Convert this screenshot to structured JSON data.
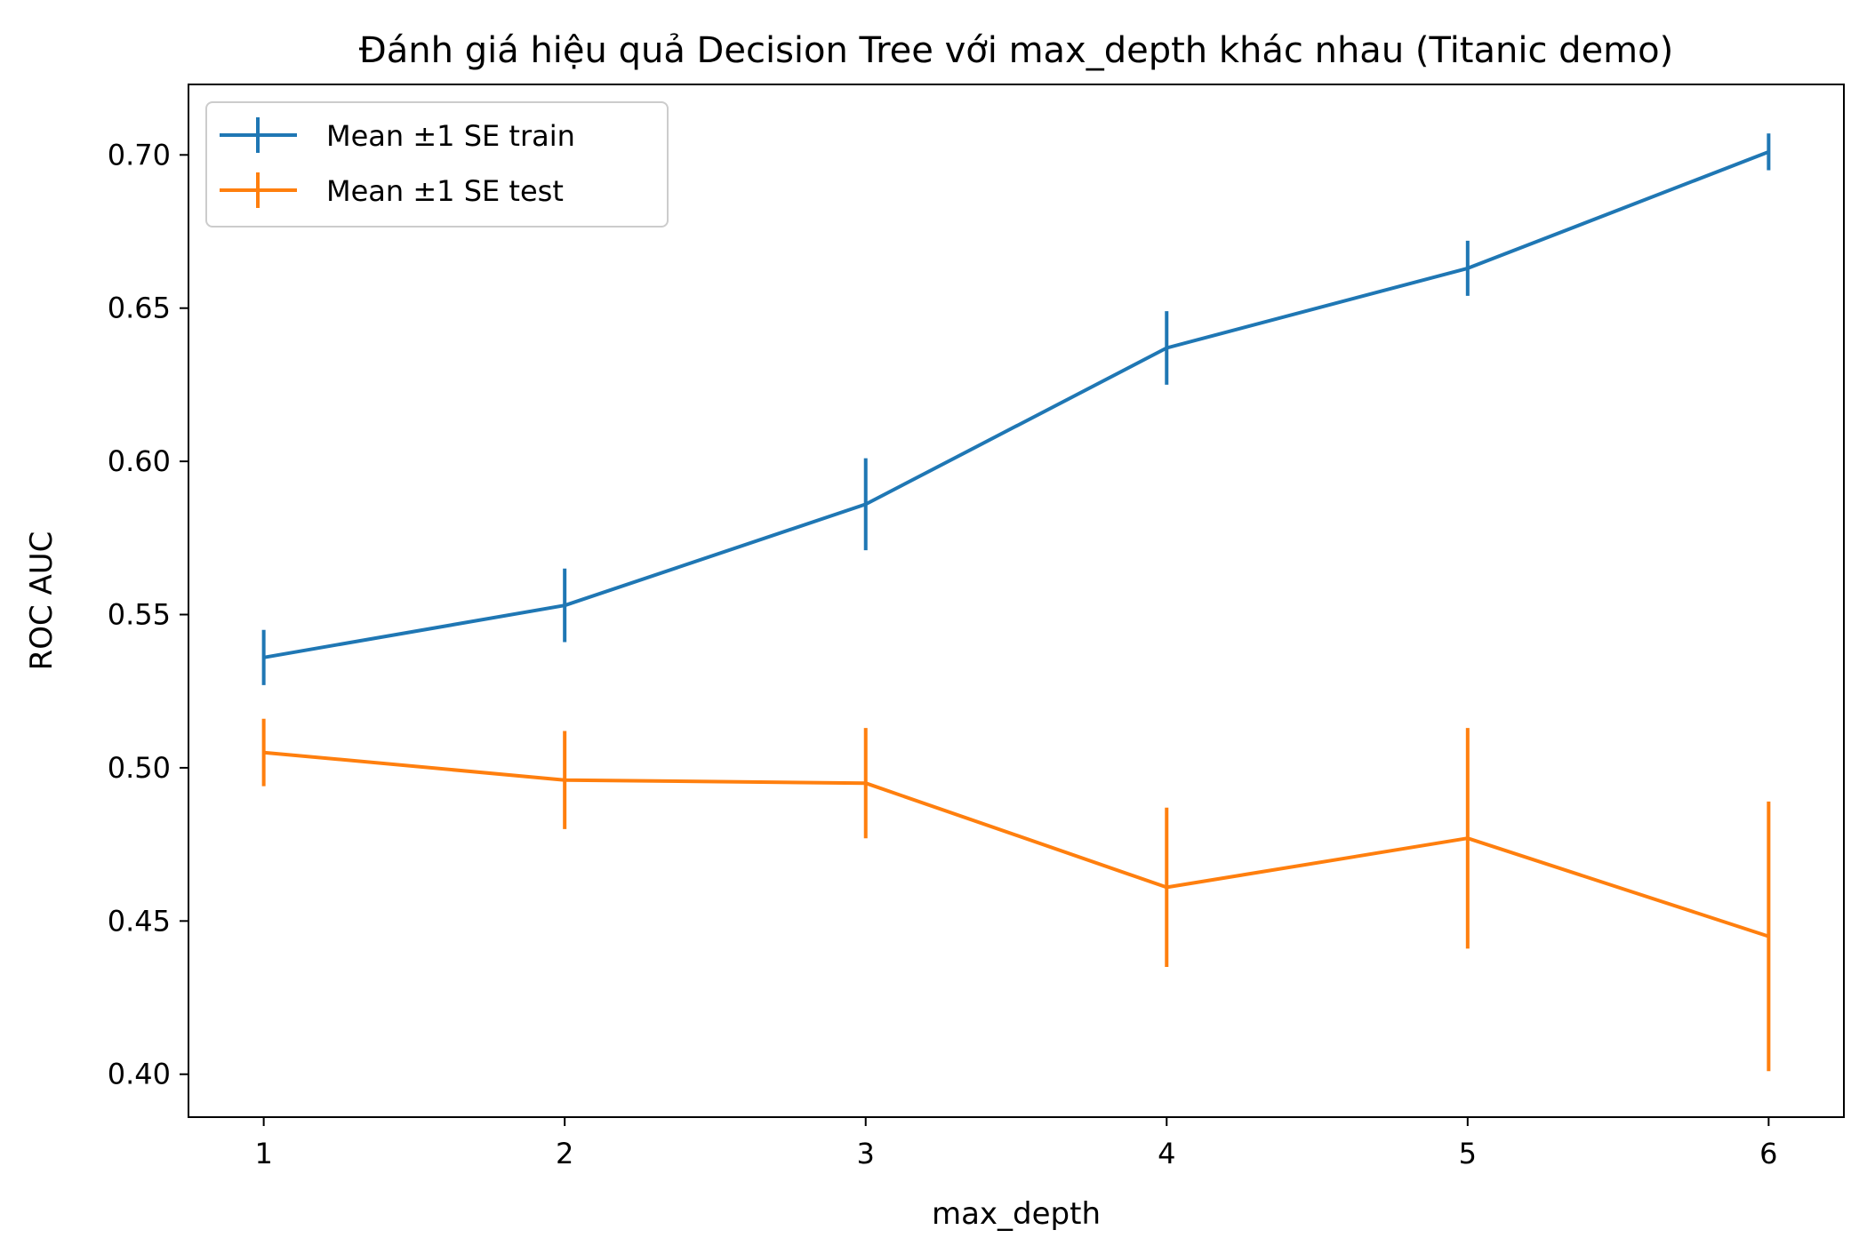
{
  "chart_data": {
    "type": "line",
    "title": "Đánh giá hiệu quả Decision Tree với max_depth khác nhau (Titanic demo)",
    "xlabel": "max_depth",
    "ylabel": "ROC AUC",
    "x": [
      1,
      2,
      3,
      4,
      5,
      6
    ],
    "x_ticks": [
      "1",
      "2",
      "3",
      "4",
      "5",
      "6"
    ],
    "xlim": [
      0.75,
      6.25
    ],
    "ylim": [
      0.386,
      0.723
    ],
    "y_ticks": [
      "0.40",
      "0.45",
      "0.50",
      "0.55",
      "0.60",
      "0.65",
      "0.70"
    ],
    "grid": false,
    "legend_position": "top-left",
    "series": [
      {
        "name": "Mean ±1 SE train",
        "color": "#1f77b4",
        "values": [
          0.536,
          0.553,
          0.586,
          0.637,
          0.663,
          0.701
        ],
        "errors": [
          0.009,
          0.012,
          0.015,
          0.012,
          0.009,
          0.006
        ]
      },
      {
        "name": "Mean ±1 SE test",
        "color": "#ff7f0e",
        "values": [
          0.505,
          0.496,
          0.495,
          0.461,
          0.477,
          0.445
        ],
        "errors": [
          0.011,
          0.016,
          0.018,
          0.026,
          0.036,
          0.044
        ]
      }
    ]
  }
}
